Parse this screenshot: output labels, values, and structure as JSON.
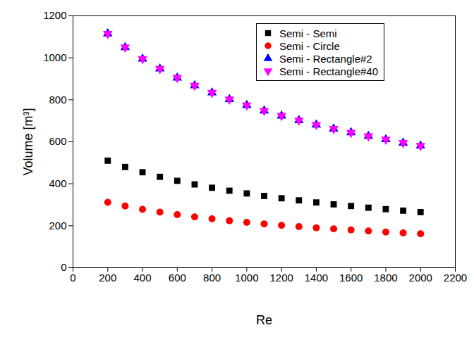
{
  "chart_data": {
    "type": "scatter",
    "xlabel": "Re",
    "ylabel": "Volume [m³]",
    "x": [
      200,
      300,
      400,
      500,
      600,
      700,
      800,
      900,
      1000,
      1100,
      1200,
      1300,
      1400,
      1500,
      1600,
      1700,
      1800,
      1900,
      2000
    ],
    "series": [
      {
        "name": "Semi - Semi",
        "color": "#000000",
        "marker": "square",
        "values": [
          510,
          480,
          455,
          433,
          414,
          397,
          381,
          367,
          354,
          342,
          331,
          321,
          311,
          302,
          294,
          286,
          279,
          272,
          265
        ]
      },
      {
        "name": "Semi - Circle",
        "color": "#ff0000",
        "marker": "circle",
        "values": [
          312,
          294,
          278,
          265,
          253,
          242,
          233,
          224,
          216,
          209,
          202,
          196,
          190,
          185,
          180,
          175,
          170,
          166,
          162
        ]
      },
      {
        "name": "Semi - Rectangle#2",
        "color": "#0000ff",
        "marker": "triangle-up",
        "values": [
          1115,
          1050,
          995,
          948,
          905,
          868,
          834,
          802,
          774,
          748,
          724,
          702,
          681,
          662,
          644,
          627,
          611,
          595,
          581
        ]
      },
      {
        "name": "Semi - Rectangle#40",
        "color": "#ff00ff",
        "marker": "triangle-down",
        "values": [
          1115,
          1050,
          995,
          948,
          905,
          868,
          834,
          802,
          774,
          748,
          724,
          702,
          681,
          662,
          644,
          627,
          611,
          595,
          581
        ]
      }
    ],
    "xlim": [
      0,
      2200
    ],
    "xticks": [
      0,
      200,
      400,
      600,
      800,
      1000,
      1200,
      1400,
      1600,
      1800,
      2000,
      2200
    ],
    "ylim": [
      0,
      1200
    ],
    "yticks": [
      0,
      200,
      400,
      600,
      800,
      1000,
      1200
    ],
    "grid": false,
    "legend": "top-right"
  }
}
